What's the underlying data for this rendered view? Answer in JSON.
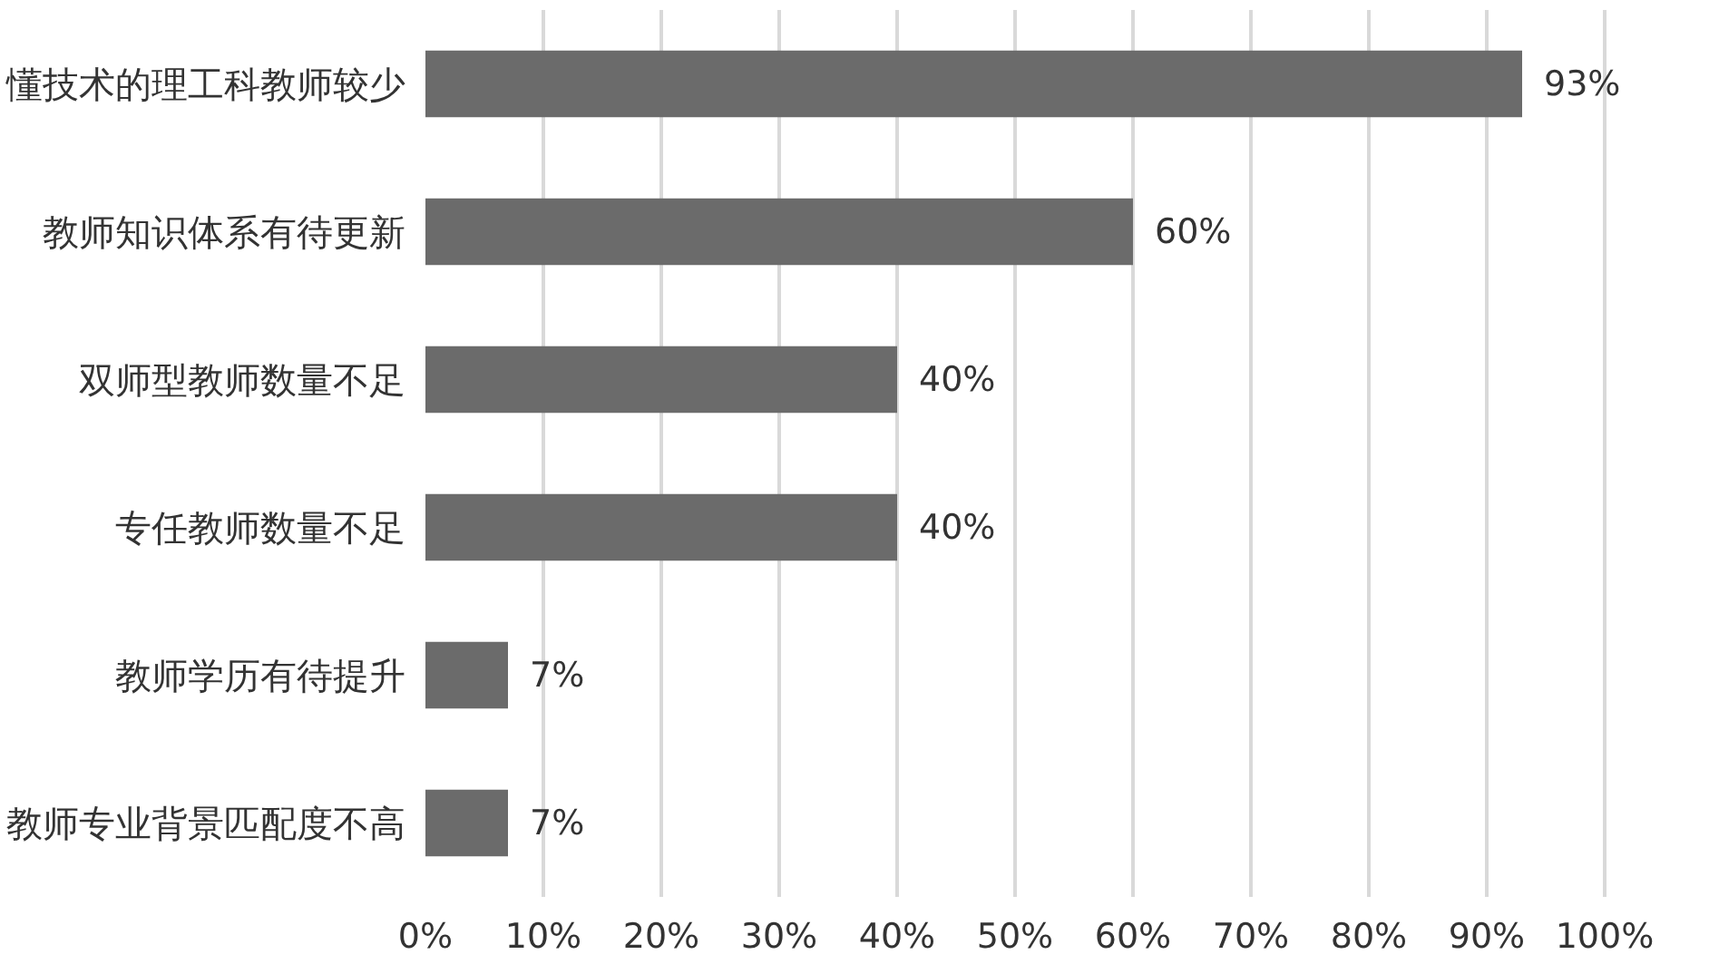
{
  "chart_data": {
    "type": "bar",
    "orientation": "horizontal",
    "categories": [
      "懂技术的理工科教师较少",
      "教师知识体系有待更新",
      "双师型教师数量不足",
      "专任教师数量不足",
      "教师学历有待提升",
      "教师专业背景匹配度不高"
    ],
    "values": [
      93,
      60,
      40,
      40,
      7,
      7
    ],
    "value_labels": [
      "93%",
      "60%",
      "40%",
      "40%",
      "7%",
      "7%"
    ],
    "color": "#6b6b6b",
    "xlim": [
      0,
      100
    ],
    "xticks": [
      {
        "value": 0,
        "label": "0%"
      },
      {
        "value": 10,
        "label": "10%"
      },
      {
        "value": 20,
        "label": "20%"
      },
      {
        "value": 30,
        "label": "30%"
      },
      {
        "value": 40,
        "label": "40%"
      },
      {
        "value": 50,
        "label": "50%"
      },
      {
        "value": 60,
        "label": "60%"
      },
      {
        "value": 70,
        "label": "70%"
      },
      {
        "value": 80,
        "label": "80%"
      },
      {
        "value": 90,
        "label": "90%"
      },
      {
        "value": 100,
        "label": "100%"
      }
    ],
    "grid": "x"
  }
}
